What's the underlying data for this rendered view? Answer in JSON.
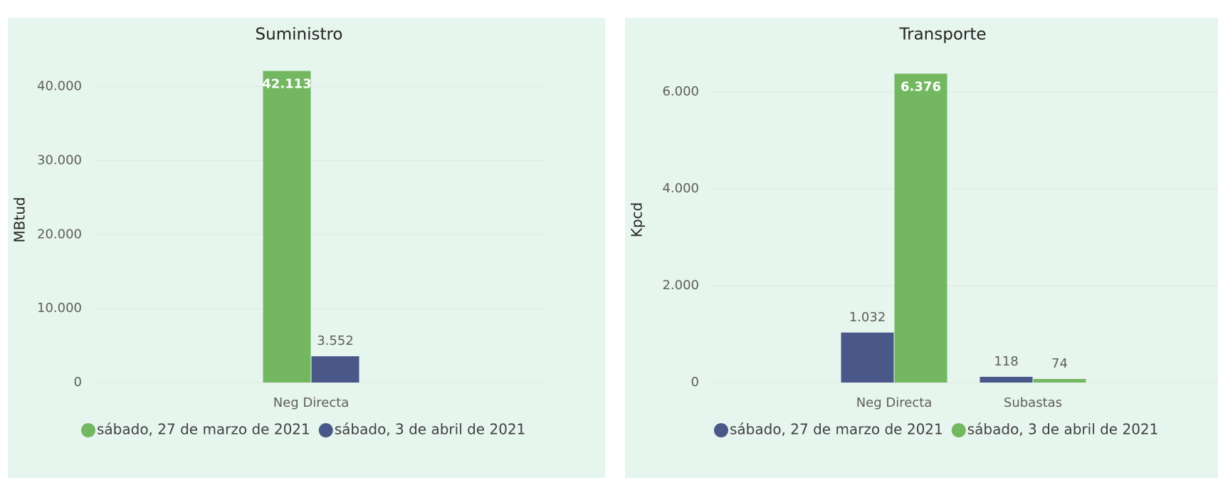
{
  "chart_data": [
    {
      "type": "bar",
      "title": "Suministro",
      "ylabel": "MBtud",
      "xlabel": "",
      "categories": [
        "Neg Directa"
      ],
      "ylim": [
        0,
        44000
      ],
      "yticks": [
        0,
        10000,
        20000,
        30000,
        40000
      ],
      "ytick_labels": [
        "0",
        "10.000",
        "20.000",
        "30.000",
        "40.000"
      ],
      "grid": true,
      "legend_position": "bottom",
      "series": [
        {
          "name": "sábado, 27 de marzo de 2021",
          "color": "#73b761",
          "values": [
            42113
          ],
          "labels": [
            "42.113"
          ],
          "label_inside": [
            true
          ]
        },
        {
          "name": "sábado, 3 de abril de 2021",
          "color": "#4a5889",
          "values": [
            3552
          ],
          "labels": [
            "3.552"
          ],
          "label_inside": [
            false
          ]
        }
      ]
    },
    {
      "type": "bar",
      "title": "Transporte",
      "ylabel": "Kpcd",
      "xlabel": "",
      "categories": [
        "Neg Directa",
        "Subastas"
      ],
      "ylim": [
        0,
        6720
      ],
      "yticks": [
        0,
        2000,
        4000,
        6000
      ],
      "ytick_labels": [
        "0",
        "2.000",
        "4.000",
        "6.000"
      ],
      "grid": true,
      "legend_position": "bottom",
      "series": [
        {
          "name": "sábado, 27 de marzo de 2021",
          "color": "#4a5889",
          "values": [
            1032,
            118
          ],
          "labels": [
            "1.032",
            "118"
          ],
          "label_inside": [
            false,
            false
          ]
        },
        {
          "name": "sábado, 3 de abril de 2021",
          "color": "#73b761",
          "values": [
            6376,
            74
          ],
          "labels": [
            "6.376",
            "74"
          ],
          "label_inside": [
            true,
            false
          ]
        }
      ]
    }
  ]
}
